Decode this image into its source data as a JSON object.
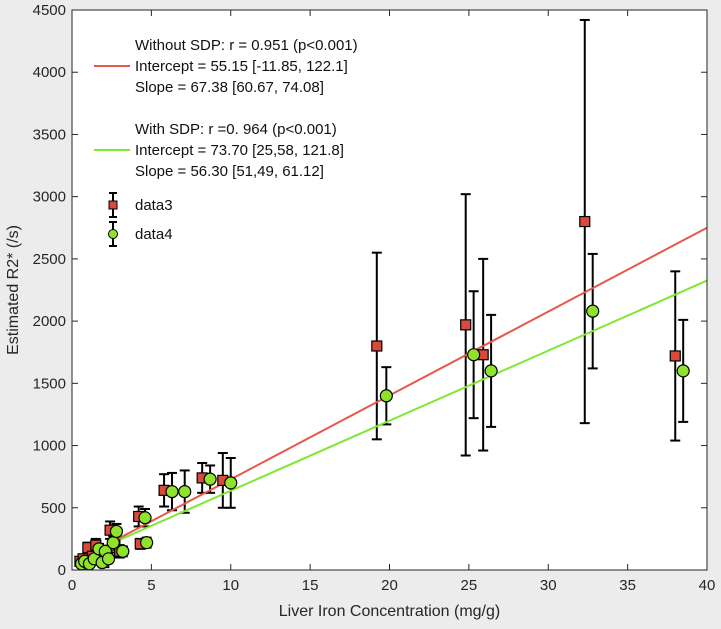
{
  "chart_data": {
    "type": "scatter",
    "title": "",
    "xlabel": "Liver Iron Concentration (mg/g)",
    "ylabel": "Estimated R2* (/s)",
    "xlim": [
      0,
      40
    ],
    "ylim": [
      0,
      4500
    ],
    "xticks": [
      0,
      5,
      10,
      15,
      20,
      25,
      30,
      35,
      40
    ],
    "yticks": [
      0,
      500,
      1000,
      1500,
      2000,
      2500,
      3000,
      3500,
      4000,
      4500
    ],
    "xtick_labels": [
      "0",
      "5",
      "10",
      "15",
      "20",
      "25",
      "30",
      "35",
      "40"
    ],
    "ytick_labels": [
      "0",
      "500",
      "1000",
      "1500",
      "2000",
      "2500",
      "3000",
      "3500",
      "4000",
      "4500"
    ],
    "grid": false,
    "colors": {
      "background": "#ececec",
      "plot_bg": "#ffffff",
      "data3_marker": "#d94a3a",
      "data4_marker": "#8fe32a",
      "fit_without": "#e8584a",
      "fit_with": "#7ee832",
      "errorbar": "#000000"
    },
    "legend": {
      "placement": "top-left",
      "entries": [
        {
          "id": "fit_without",
          "lines": [
            "Without SDP: r = 0.951 (p<0.001)",
            "Intercept = 55.15 [-11.85, 122.1]",
            "Slope = 67.38 [60.67, 74.08]"
          ]
        },
        {
          "id": "fit_with",
          "lines": [
            "With SDP: r =0. 964 (p<0.001)",
            "Intercept = 73.70 [25,58, 121.8]",
            "Slope = 56.30 [51,49, 61.12]"
          ]
        },
        {
          "id": "data3",
          "lines": [
            "data3"
          ]
        },
        {
          "id": "data4",
          "lines": [
            "data4"
          ]
        }
      ]
    },
    "fit_lines": [
      {
        "name": "Without SDP",
        "intercept": 55.15,
        "slope": 67.38,
        "x_range": [
          0.3,
          40
        ]
      },
      {
        "name": "With SDP",
        "intercept": 73.7,
        "slope": 56.3,
        "x_range": [
          0.3,
          40
        ]
      }
    ],
    "series": [
      {
        "name": "data3",
        "marker": "square",
        "points": [
          {
            "x": 0.5,
            "y": 70,
            "err": 25
          },
          {
            "x": 0.7,
            "y": 90,
            "err": 30
          },
          {
            "x": 0.9,
            "y": 60,
            "err": 25
          },
          {
            "x": 1.0,
            "y": 180,
            "err": 40
          },
          {
            "x": 1.3,
            "y": 110,
            "err": 40
          },
          {
            "x": 1.5,
            "y": 200,
            "err": 50
          },
          {
            "x": 1.6,
            "y": 80,
            "err": 30
          },
          {
            "x": 1.8,
            "y": 130,
            "err": 40
          },
          {
            "x": 2.0,
            "y": 60,
            "err": 30
          },
          {
            "x": 2.2,
            "y": 110,
            "err": 40
          },
          {
            "x": 2.4,
            "y": 320,
            "err": 70
          },
          {
            "x": 2.7,
            "y": 200,
            "err": 60
          },
          {
            "x": 3.0,
            "y": 150,
            "err": 50
          },
          {
            "x": 4.2,
            "y": 430,
            "err": 80
          },
          {
            "x": 4.3,
            "y": 210,
            "err": 40
          },
          {
            "x": 5.8,
            "y": 640,
            "err": 130
          },
          {
            "x": 8.2,
            "y": 740,
            "err": 120
          },
          {
            "x": 9.5,
            "y": 720,
            "err": 220
          },
          {
            "x": 19.2,
            "y": 1800,
            "err": 750
          },
          {
            "x": 24.8,
            "y": 1970,
            "err": 1050
          },
          {
            "x": 25.9,
            "y": 1730,
            "err": 770
          },
          {
            "x": 32.3,
            "y": 2800,
            "err": 1620
          },
          {
            "x": 38.0,
            "y": 1720,
            "err": 680
          }
        ]
      },
      {
        "name": "data4",
        "marker": "circle",
        "points": [
          {
            "x": 0.6,
            "y": 50,
            "err": 20
          },
          {
            "x": 0.8,
            "y": 70,
            "err": 25
          },
          {
            "x": 1.1,
            "y": 50,
            "err": 20
          },
          {
            "x": 1.4,
            "y": 90,
            "err": 30
          },
          {
            "x": 1.7,
            "y": 170,
            "err": 40
          },
          {
            "x": 1.9,
            "y": 60,
            "err": 25
          },
          {
            "x": 2.1,
            "y": 150,
            "err": 40
          },
          {
            "x": 2.3,
            "y": 90,
            "err": 30
          },
          {
            "x": 2.6,
            "y": 220,
            "err": 50
          },
          {
            "x": 2.8,
            "y": 310,
            "err": 60
          },
          {
            "x": 3.2,
            "y": 150,
            "err": 40
          },
          {
            "x": 4.6,
            "y": 420,
            "err": 70
          },
          {
            "x": 4.7,
            "y": 220,
            "err": 40
          },
          {
            "x": 6.3,
            "y": 630,
            "err": 150
          },
          {
            "x": 7.1,
            "y": 630,
            "err": 170
          },
          {
            "x": 8.7,
            "y": 730,
            "err": 110
          },
          {
            "x": 10.0,
            "y": 700,
            "err": 200
          },
          {
            "x": 19.8,
            "y": 1400,
            "err": 230
          },
          {
            "x": 25.3,
            "y": 1730,
            "err": 510
          },
          {
            "x": 26.4,
            "y": 1600,
            "err": 450
          },
          {
            "x": 32.8,
            "y": 2080,
            "err": 460
          },
          {
            "x": 38.5,
            "y": 1600,
            "err": 410
          }
        ]
      }
    ]
  }
}
